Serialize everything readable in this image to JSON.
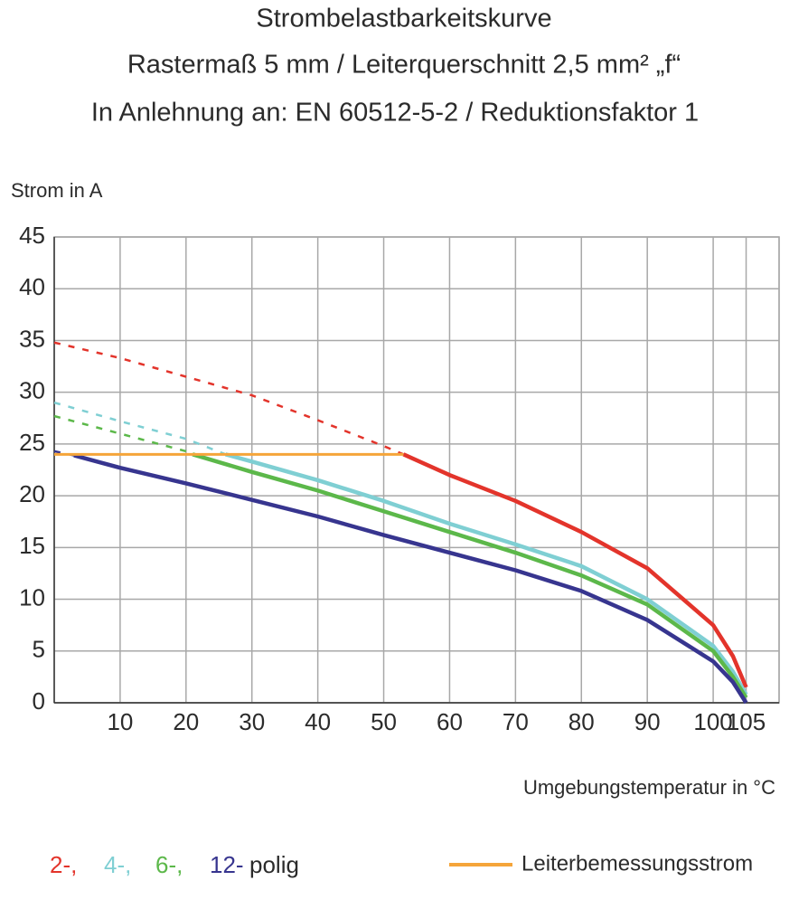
{
  "chart_data": {
    "type": "line",
    "title_lines": [
      "Strombelastbarkeitskurve",
      "Rastermaß 5 mm / Leiterquerschnitt 2,5 mm² „f“",
      "In Anlehnung an: EN 60512-5-2 / Reduktionsfaktor 1"
    ],
    "y_label": "Strom in A",
    "x_label": "Umgebungstemperatur in °C",
    "xlim": [
      0,
      110
    ],
    "xticks": [
      10,
      20,
      30,
      40,
      50,
      60,
      70,
      80,
      90,
      100,
      105
    ],
    "ylim": [
      0,
      45
    ],
    "yticks": [
      0,
      5,
      10,
      15,
      20,
      25,
      30,
      35,
      40,
      45
    ],
    "grid": true,
    "series": [
      {
        "name": "2-,",
        "color": "#e3342b",
        "x": [
          0,
          10,
          20,
          30,
          40,
          50,
          53,
          60,
          70,
          80,
          90,
          100,
          103,
          105
        ],
        "values": [
          34.8,
          33.3,
          31.5,
          29.7,
          27.3,
          24.8,
          24,
          22,
          19.5,
          16.5,
          13,
          7.5,
          4.5,
          1.5
        ]
      },
      {
        "name": "4-,",
        "color": "#7fcfd3",
        "x": [
          0,
          10,
          20,
          26,
          30,
          40,
          50,
          60,
          70,
          80,
          90,
          100,
          103,
          105
        ],
        "values": [
          29,
          27.2,
          25.5,
          24,
          23.3,
          21.5,
          19.5,
          17.3,
          15.3,
          13.2,
          10,
          5.5,
          3,
          0.8
        ]
      },
      {
        "name": "6-,",
        "color": "#5cb84a",
        "x": [
          0,
          10,
          20,
          21,
          30,
          40,
          50,
          60,
          70,
          80,
          90,
          100,
          103,
          105
        ],
        "values": [
          27.7,
          26,
          24.3,
          24,
          22.3,
          20.5,
          18.5,
          16.5,
          14.5,
          12.3,
          9.5,
          5,
          2.5,
          0.5
        ]
      },
      {
        "name": "12-",
        "color": "#37358f",
        "x": [
          0,
          3,
          10,
          20,
          30,
          40,
          50,
          60,
          70,
          80,
          90,
          100,
          103,
          105
        ],
        "values": [
          24.3,
          23.9,
          22.7,
          21.2,
          19.6,
          18,
          16.2,
          14.5,
          12.8,
          10.8,
          8,
          4,
          2,
          0
        ]
      }
    ],
    "legend_suffix": "polig",
    "rated": {
      "name": "Leiterbemessungsstrom",
      "color": "#f5a53a",
      "x": [
        0,
        53
      ],
      "values": [
        24,
        24
      ]
    }
  }
}
